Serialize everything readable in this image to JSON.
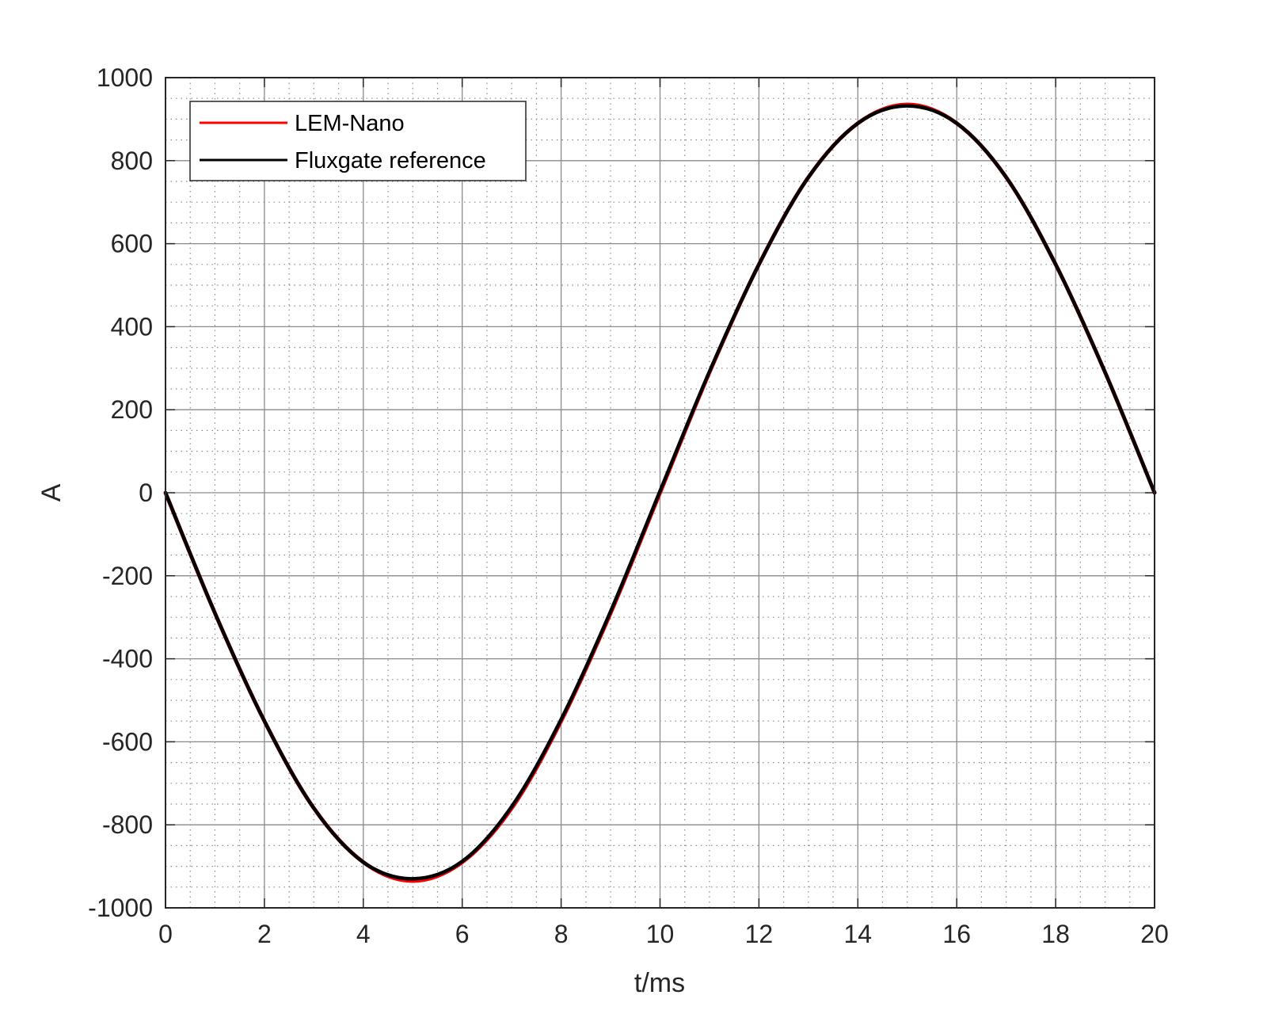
{
  "chart_data": {
    "type": "line",
    "title": "",
    "xlabel": "t/ms",
    "ylabel": "A",
    "xlim": [
      0,
      20
    ],
    "ylim": [
      -1000,
      1000
    ],
    "xticks": [
      0,
      2,
      4,
      6,
      8,
      10,
      12,
      14,
      16,
      18,
      20
    ],
    "yticks": [
      -1000,
      -800,
      -600,
      -400,
      -200,
      0,
      200,
      400,
      600,
      800,
      1000
    ],
    "x_tick_labels": [
      "0",
      "2",
      "4",
      "6",
      "8",
      "10",
      "12",
      "14",
      "16",
      "18",
      "20"
    ],
    "y_tick_labels": [
      "-1000",
      "-800",
      "-600",
      "-400",
      "-200",
      "0",
      "200",
      "400",
      "600",
      "800",
      "1000"
    ],
    "grid": true,
    "minor_grid": true,
    "legend_position": "top-left",
    "series": [
      {
        "name": "LEM-Nano",
        "color": "#ff0000",
        "x": [
          0,
          1,
          2,
          3,
          4,
          5,
          6,
          7,
          8,
          9,
          10,
          11,
          12,
          13,
          14,
          15,
          16,
          17,
          18,
          19,
          20
        ],
        "y": [
          0,
          -290,
          -550,
          -760,
          -890,
          -935,
          -890,
          -760,
          -550,
          -290,
          0,
          290,
          550,
          760,
          890,
          935,
          890,
          760,
          550,
          290,
          0
        ]
      },
      {
        "name": "Fluxgate reference",
        "color": "#000000",
        "x": [
          0,
          1,
          2,
          3,
          4,
          5,
          6,
          7,
          8,
          9,
          10,
          11,
          12,
          13,
          14,
          15,
          16,
          17,
          18,
          19,
          20
        ],
        "y": [
          0,
          -290,
          -550,
          -760,
          -890,
          -930,
          -888,
          -756,
          -546,
          -286,
          4,
          292,
          550,
          760,
          890,
          932,
          890,
          760,
          550,
          290,
          0
        ]
      }
    ]
  }
}
